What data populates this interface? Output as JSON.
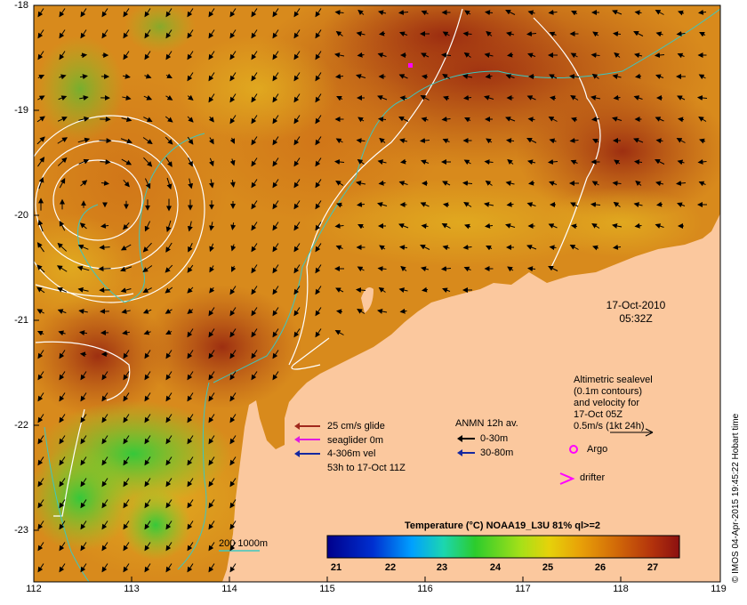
{
  "map": {
    "lat_labels": [
      "-18",
      "-19",
      "-20",
      "-21",
      "-22",
      "-23"
    ],
    "lon_labels": [
      "112",
      "113",
      "114",
      "115",
      "116",
      "117",
      "118",
      "119"
    ],
    "date": "17-Oct-2010",
    "time": "05:32Z",
    "altimetry_lines": [
      "Altimetric sealevel",
      "(0.1m contours)",
      "and velocity for",
      "17-Oct 05Z",
      "0.5m/s (1kt 24h)"
    ],
    "glider_lines": [
      "25 cm/s glide",
      "seaglider 0m",
      "4-306m vel",
      "53h to 17-Oct 11Z"
    ],
    "anmn_title": "ANMN 12h av.",
    "anmn_items": [
      "0-30m",
      "30-80m"
    ],
    "argo_label": "Argo",
    "drifter_label": "drifter",
    "bathy_label": "200  1000m",
    "credit": "© IMOS 04-Apr-2015 19:45:22 Hobart time",
    "colorbar_title": "Temperature (°C) NOAA19_L3U 81% ql>=2",
    "colorbar_ticks": [
      "21",
      "22",
      "23",
      "24",
      "25",
      "26",
      "27"
    ],
    "colors": {
      "land": "#fbc89e",
      "warm": "#a83a14",
      "cool": "#3fcf3a",
      "bathy": "#3cc7c0",
      "contour": "#ffffff",
      "glider_glide": "#a0281c",
      "glider_vel": "#e01be0",
      "glider_track": "#1428a0",
      "argo": "#ff00ff"
    }
  }
}
